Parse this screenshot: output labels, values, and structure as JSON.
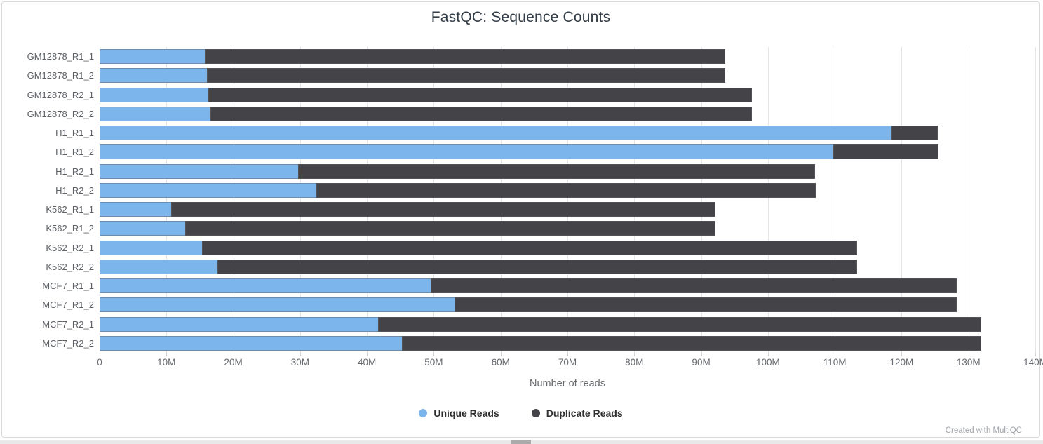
{
  "title": "FastQC: Sequence Counts",
  "xlabel": "Number of reads",
  "footer": "Created with MultiQC",
  "colors": {
    "unique": "#7cb5ec",
    "duplicate": "#434348",
    "gridline": "#e6e6e6"
  },
  "legend": {
    "items": [
      {
        "label": "Unique Reads",
        "color": "#7cb5ec"
      },
      {
        "label": "Duplicate Reads",
        "color": "#434348"
      }
    ]
  },
  "chart_data": {
    "type": "bar",
    "orientation": "horizontal",
    "stacked": true,
    "title": "FastQC: Sequence Counts",
    "xlabel": "Number of reads",
    "ylabel": "",
    "units": "millions of reads",
    "xlim": [
      0,
      140
    ],
    "grid": true,
    "legend_position": "bottom",
    "categories": [
      "GM12878_R1_1",
      "GM12878_R1_2",
      "GM12878_R2_1",
      "GM12878_R2_2",
      "H1_R1_1",
      "H1_R1_2",
      "H1_R2_1",
      "H1_R2_2",
      "K562_R1_1",
      "K562_R1_2",
      "K562_R2_1",
      "K562_R2_2",
      "MCF7_R1_1",
      "MCF7_R1_2",
      "MCF7_R2_1",
      "MCF7_R2_2"
    ],
    "xticks": [
      "0",
      "10M",
      "20M",
      "30M",
      "40M",
      "50M",
      "60M",
      "70M",
      "80M",
      "90M",
      "100M",
      "110M",
      "120M",
      "130M",
      "140M"
    ],
    "series": [
      {
        "name": "Unique Reads",
        "color": "#7cb5ec",
        "values": [
          15.8,
          16.2,
          16.4,
          16.7,
          118.6,
          109.9,
          29.8,
          32.5,
          10.8,
          12.9,
          15.4,
          17.7,
          49.6,
          53.2,
          41.8,
          45.3
        ]
      },
      {
        "name": "Duplicate Reads",
        "color": "#434348",
        "values": [
          77.9,
          77.5,
          81.3,
          81.0,
          6.9,
          15.7,
          77.4,
          74.8,
          81.4,
          79.4,
          98.0,
          95.7,
          78.7,
          75.1,
          90.2,
          86.7
        ]
      }
    ],
    "totals": [
      93.7,
      93.7,
      97.7,
      97.7,
      125.5,
      125.6,
      107.2,
      107.3,
      92.2,
      92.3,
      113.4,
      113.4,
      128.3,
      128.3,
      132.0,
      132.0
    ]
  }
}
